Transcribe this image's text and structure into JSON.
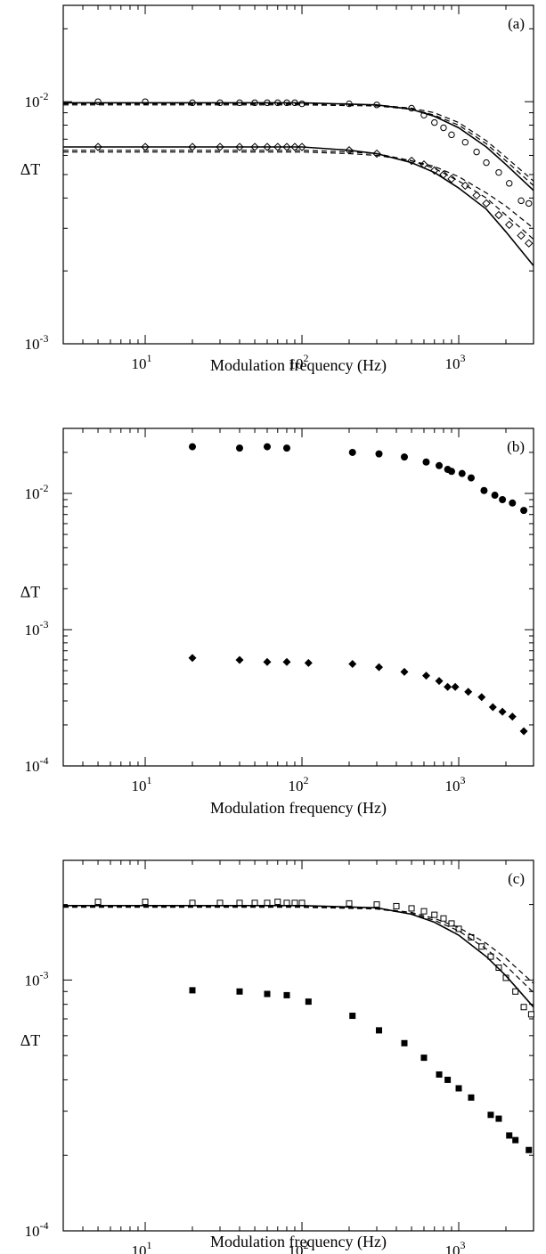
{
  "chart_data": [
    {
      "type": "line",
      "panel_label": "(a)",
      "xlabel": "Modulation frequency (Hz)",
      "ylabel": "ΔT",
      "xscale": "log",
      "yscale": "log",
      "xlim": [
        3,
        3000
      ],
      "ylim": [
        0.001,
        0.025
      ],
      "xticks": [
        {
          "base": "10",
          "exp": "1",
          "value": 10
        },
        {
          "base": "10",
          "exp": "2",
          "value": 100
        },
        {
          "base": "10",
          "exp": "3",
          "value": 1000
        }
      ],
      "yticks": [
        {
          "base": "10",
          "exp": "-3",
          "value": 0.001
        },
        {
          "base": "10",
          "exp": "-2",
          "value": 0.01
        }
      ],
      "series": [
        {
          "marker": "open-circle",
          "x": [
            5,
            10,
            20,
            30,
            40,
            50,
            60,
            70,
            80,
            90,
            100,
            200,
            300,
            500,
            600,
            700,
            800,
            900,
            1100,
            1300,
            1500,
            1800,
            2100,
            2500,
            2800
          ],
          "y": [
            0.01,
            0.01,
            0.0099,
            0.0099,
            0.0099,
            0.0099,
            0.0099,
            0.0099,
            0.0099,
            0.0099,
            0.0098,
            0.0098,
            0.0097,
            0.0094,
            0.0088,
            0.0082,
            0.0078,
            0.0073,
            0.0068,
            0.0062,
            0.0056,
            0.0051,
            0.0046,
            0.0039,
            0.0038
          ]
        },
        {
          "marker": "open-diamond",
          "x": [
            5,
            10,
            20,
            30,
            40,
            50,
            60,
            70,
            80,
            90,
            100,
            200,
            300,
            500,
            600,
            700,
            800,
            900,
            1100,
            1300,
            1500,
            1800,
            2100,
            2500,
            2800
          ],
          "y": [
            0.0065,
            0.0065,
            0.0065,
            0.0065,
            0.0065,
            0.0065,
            0.0065,
            0.0065,
            0.0065,
            0.0065,
            0.0065,
            0.0063,
            0.0061,
            0.0057,
            0.0055,
            0.0052,
            0.005,
            0.0048,
            0.0045,
            0.0041,
            0.0038,
            0.0034,
            0.0031,
            0.0028,
            0.0026
          ]
        },
        {
          "style": "solid",
          "x": [
            3,
            100,
            300,
            500,
            700,
            1000,
            1500,
            2000,
            3000
          ],
          "y": [
            0.0099,
            0.0099,
            0.0097,
            0.0093,
            0.0087,
            0.0078,
            0.0065,
            0.0055,
            0.0043
          ]
        },
        {
          "style": "dashed",
          "x": [
            3,
            100,
            300,
            500,
            700,
            1000,
            1500,
            2000,
            3000
          ],
          "y": [
            0.0098,
            0.0098,
            0.0097,
            0.0094,
            0.009,
            0.0082,
            0.0069,
            0.0059,
            0.0047
          ]
        },
        {
          "style": "dashed",
          "x": [
            3,
            100,
            300,
            500,
            700,
            1000,
            1500,
            2000,
            3000
          ],
          "y": [
            0.0097,
            0.0097,
            0.0096,
            0.0093,
            0.0088,
            0.008,
            0.0067,
            0.0057,
            0.0045
          ]
        },
        {
          "style": "solid",
          "x": [
            3,
            100,
            200,
            300,
            500,
            700,
            1000,
            1500,
            2000,
            3000
          ],
          "y": [
            0.0065,
            0.0065,
            0.0063,
            0.0061,
            0.0056,
            0.0051,
            0.0044,
            0.0036,
            0.0029,
            0.0021
          ]
        },
        {
          "style": "dashed",
          "x": [
            3,
            100,
            200,
            300,
            500,
            700,
            1000,
            1500,
            2000,
            3000
          ],
          "y": [
            0.0063,
            0.0063,
            0.0062,
            0.0061,
            0.0057,
            0.0053,
            0.0047,
            0.004,
            0.0034,
            0.0027
          ]
        },
        {
          "style": "dashed",
          "x": [
            3,
            100,
            200,
            300,
            500,
            700,
            1000,
            1500,
            2000,
            3000
          ],
          "y": [
            0.0062,
            0.0062,
            0.0061,
            0.006,
            0.0057,
            0.0054,
            0.0049,
            0.0042,
            0.0037,
            0.003
          ]
        }
      ]
    },
    {
      "type": "scatter",
      "panel_label": "(b)",
      "xlabel": "Modulation frequency (Hz)",
      "ylabel": "ΔT",
      "xscale": "log",
      "yscale": "log",
      "xlim": [
        3,
        3000
      ],
      "ylim": [
        0.0001,
        0.03
      ],
      "xticks": [
        {
          "base": "10",
          "exp": "1",
          "value": 10
        },
        {
          "base": "10",
          "exp": "2",
          "value": 100
        },
        {
          "base": "10",
          "exp": "3",
          "value": 1000
        }
      ],
      "yticks": [
        {
          "base": "10",
          "exp": "-4",
          "value": 0.0001
        },
        {
          "base": "10",
          "exp": "-3",
          "value": 0.001
        },
        {
          "base": "10",
          "exp": "-2",
          "value": 0.01
        }
      ],
      "series": [
        {
          "marker": "filled-circle",
          "x": [
            20,
            40,
            60,
            80,
            210,
            310,
            450,
            620,
            750,
            850,
            900,
            1050,
            1200,
            1450,
            1700,
            1900,
            2200,
            2600
          ],
          "y": [
            0.022,
            0.0215,
            0.022,
            0.0215,
            0.02,
            0.0195,
            0.0185,
            0.017,
            0.016,
            0.015,
            0.0145,
            0.014,
            0.013,
            0.0105,
            0.0097,
            0.009,
            0.0085,
            0.0075
          ]
        },
        {
          "marker": "filled-diamond",
          "x": [
            20,
            40,
            60,
            80,
            110,
            210,
            310,
            450,
            620,
            750,
            850,
            950,
            1150,
            1400,
            1650,
            1900,
            2200,
            2600
          ],
          "y": [
            0.00062,
            0.0006,
            0.00058,
            0.00058,
            0.00057,
            0.00056,
            0.00053,
            0.00049,
            0.00046,
            0.00042,
            0.00038,
            0.00038,
            0.00035,
            0.00032,
            0.00027,
            0.00025,
            0.00023,
            0.00018
          ]
        }
      ]
    },
    {
      "type": "line",
      "panel_label": "(c)",
      "xlabel": "Modulation frequency (Hz)",
      "ylabel": "ΔT",
      "xscale": "log",
      "yscale": "log",
      "xlim": [
        3,
        3000
      ],
      "ylim": [
        0.0001,
        0.003
      ],
      "xticks": [
        {
          "base": "10",
          "exp": "1",
          "value": 10
        },
        {
          "base": "10",
          "exp": "2",
          "value": 100
        },
        {
          "base": "10",
          "exp": "3",
          "value": 1000
        }
      ],
      "yticks": [
        {
          "base": "10",
          "exp": "-4",
          "value": 0.0001
        },
        {
          "base": "10",
          "exp": "-3",
          "value": 0.001
        }
      ],
      "series": [
        {
          "marker": "open-square",
          "x": [
            5,
            10,
            20,
            30,
            40,
            50,
            60,
            70,
            80,
            90,
            100,
            200,
            300,
            400,
            500,
            600,
            700,
            800,
            900,
            1000,
            1200,
            1400,
            1600,
            1800,
            2000,
            2300,
            2600,
            2900
          ],
          "y": [
            0.00205,
            0.00205,
            0.00203,
            0.00203,
            0.00203,
            0.00203,
            0.00203,
            0.00205,
            0.00203,
            0.00203,
            0.00203,
            0.00202,
            0.002,
            0.00197,
            0.00193,
            0.00188,
            0.00182,
            0.00176,
            0.00168,
            0.0016,
            0.00148,
            0.00136,
            0.00124,
            0.00112,
            0.00102,
            0.0009,
            0.00078,
            0.00073
          ]
        },
        {
          "marker": "filled-square",
          "x": [
            20,
            40,
            60,
            80,
            110,
            210,
            310,
            450,
            600,
            750,
            850,
            1000,
            1200,
            1600,
            1800,
            2100,
            2300,
            2800
          ],
          "y": [
            0.00091,
            0.0009,
            0.00088,
            0.00087,
            0.00082,
            0.00072,
            0.00063,
            0.00056,
            0.00049,
            0.00042,
            0.0004,
            0.00037,
            0.00034,
            0.00029,
            0.00028,
            0.00024,
            0.00023,
            0.00021
          ]
        },
        {
          "style": "solid",
          "x": [
            3,
            100,
            300,
            500,
            700,
            1000,
            1500,
            2000,
            3000
          ],
          "y": [
            0.00198,
            0.00198,
            0.00194,
            0.00183,
            0.0017,
            0.00151,
            0.00124,
            0.00104,
            0.00078
          ]
        },
        {
          "style": "dashed",
          "x": [
            3,
            100,
            300,
            500,
            700,
            1000,
            1500,
            2000,
            3000
          ],
          "y": [
            0.00196,
            0.00196,
            0.00193,
            0.00186,
            0.00176,
            0.00162,
            0.0014,
            0.00122,
            0.00097
          ]
        },
        {
          "style": "dashed",
          "x": [
            3,
            100,
            300,
            500,
            700,
            1000,
            1500,
            2000,
            3000
          ],
          "y": [
            0.00195,
            0.00195,
            0.00192,
            0.00184,
            0.00173,
            0.00157,
            0.00133,
            0.00114,
            0.00089
          ]
        }
      ]
    }
  ]
}
